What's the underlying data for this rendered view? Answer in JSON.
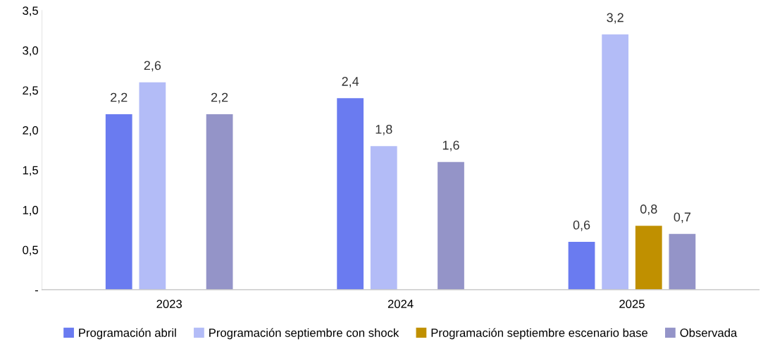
{
  "chart_data": {
    "type": "bar",
    "categories": [
      "2023",
      "2024",
      "2025"
    ],
    "series": [
      {
        "name": "Programación abril",
        "color": "#6a7bf0",
        "values": [
          2.2,
          2.4,
          0.6
        ],
        "value_labels": [
          "2,2",
          "2,4",
          "0,6"
        ]
      },
      {
        "name": "Programación septiembre con shock",
        "color": "#b3bcf7",
        "values": [
          2.6,
          1.8,
          3.2
        ],
        "value_labels": [
          "2,6",
          "1,8",
          "3,2"
        ]
      },
      {
        "name": "Programación septiembre escenario base",
        "color": "#c09000",
        "values": [
          null,
          null,
          0.8
        ],
        "value_labels": [
          null,
          null,
          "0,8"
        ]
      },
      {
        "name": "Observada",
        "color": "#9494c8",
        "values": [
          2.2,
          1.6,
          0.7
        ],
        "value_labels": [
          "2,2",
          "1,6",
          "0,7"
        ]
      }
    ],
    "ylim": [
      0,
      3.5
    ],
    "yticks": [
      {
        "value": 0,
        "label": "-"
      },
      {
        "value": 0.5,
        "label": "0,5"
      },
      {
        "value": 1.0,
        "label": "1,0"
      },
      {
        "value": 1.5,
        "label": "1,5"
      },
      {
        "value": 2.0,
        "label": "2,0"
      },
      {
        "value": 2.5,
        "label": "2,5"
      },
      {
        "value": 3.0,
        "label": "3,0"
      },
      {
        "value": 3.5,
        "label": "3,5"
      }
    ],
    "grid": false,
    "legend": "bottom"
  }
}
